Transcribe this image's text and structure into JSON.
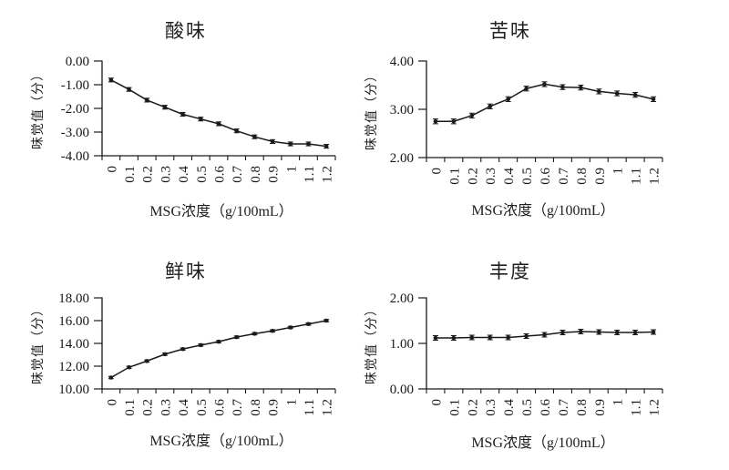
{
  "figure": {
    "background": "#ffffff",
    "line_color": "#1a1a1a",
    "text_color": "#1f1f1f"
  },
  "chart_data": [
    {
      "type": "line",
      "title": "酸味",
      "xlabel": "MSG浓度（g/100mL）",
      "ylabel": "味觉值（分）",
      "categories": [
        "0",
        "0.1",
        "0.2",
        "0.3",
        "0.4",
        "0.5",
        "0.6",
        "0.7",
        "0.8",
        "0.9",
        "1",
        "1.1",
        "1.2"
      ],
      "values": [
        -0.8,
        -1.2,
        -1.65,
        -1.95,
        -2.25,
        -2.45,
        -2.65,
        -2.95,
        -3.2,
        -3.4,
        -3.5,
        -3.5,
        -3.6
      ],
      "error": 0.08,
      "ylim": [
        -4,
        0
      ],
      "yticks": [
        0,
        -1,
        -2,
        -3,
        -4
      ],
      "ytick_decimals": 2,
      "grid": false,
      "legend": null,
      "marker": "dot"
    },
    {
      "type": "line",
      "title": "苦味",
      "xlabel": "MSG浓度（g/100mL）",
      "ylabel": "味觉值（分）",
      "categories": [
        "0",
        "0.1",
        "0.2",
        "0.3",
        "0.4",
        "0.5",
        "0.6",
        "0.7",
        "0.8",
        "0.9",
        "1",
        "1.1",
        "1.2"
      ],
      "values": [
        2.75,
        2.75,
        2.87,
        3.06,
        3.21,
        3.43,
        3.52,
        3.46,
        3.45,
        3.37,
        3.33,
        3.3,
        3.21
      ],
      "error": 0.05,
      "ylim": [
        2,
        4
      ],
      "yticks": [
        4,
        3,
        2
      ],
      "ytick_decimals": 2,
      "grid": false,
      "legend": null,
      "marker": "dot"
    },
    {
      "type": "line",
      "title": "鲜味",
      "xlabel": "MSG浓度（g/100mL）",
      "ylabel": "味觉值（分）",
      "categories": [
        "0",
        "0.1",
        "0.2",
        "0.3",
        "0.4",
        "0.5",
        "0.6",
        "0.7",
        "0.8",
        "0.9",
        "1",
        "1.1",
        "1.2"
      ],
      "values": [
        11.0,
        11.9,
        12.45,
        13.05,
        13.5,
        13.85,
        14.15,
        14.55,
        14.85,
        15.1,
        15.4,
        15.7,
        16.0
      ],
      "error": 0.1,
      "ylim": [
        10,
        18
      ],
      "yticks": [
        18,
        16,
        14,
        12,
        10
      ],
      "ytick_decimals": 2,
      "grid": false,
      "legend": null,
      "marker": "dot"
    },
    {
      "type": "line",
      "title": "丰度",
      "xlabel": "MSG浓度（g/100mL）",
      "ylabel": "味觉值（分）",
      "categories": [
        "0",
        "0.1",
        "0.2",
        "0.3",
        "0.4",
        "0.5",
        "0.6",
        "0.7",
        "0.8",
        "0.9",
        "1",
        "1.1",
        "1.2"
      ],
      "values": [
        1.12,
        1.12,
        1.13,
        1.13,
        1.13,
        1.16,
        1.19,
        1.24,
        1.26,
        1.25,
        1.24,
        1.24,
        1.25
      ],
      "error": 0.05,
      "ylim": [
        0,
        2
      ],
      "yticks": [
        2,
        1,
        0
      ],
      "ytick_decimals": 2,
      "grid": false,
      "legend": null,
      "marker": "dot"
    }
  ]
}
